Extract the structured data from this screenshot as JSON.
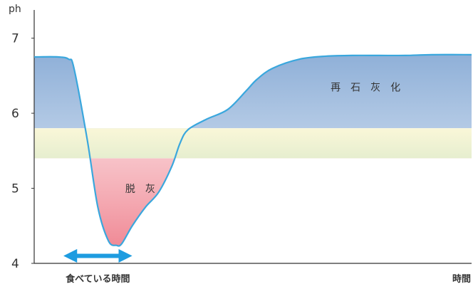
{
  "chart_data": {
    "type": "line",
    "ylabel": "ph",
    "xlabel": "時間",
    "ylim": [
      4,
      7.3
    ],
    "yticks": [
      4,
      5,
      6,
      7
    ],
    "grid": false,
    "critical_band": [
      5.4,
      5.8
    ],
    "series": [
      {
        "x": [
          0,
          0.9,
          1.3,
          1.5,
          2.0,
          2.4,
          2.8,
          3.1,
          3.3,
          3.7,
          4.2,
          4.7,
          5.2,
          5.5,
          5.8,
          6.5,
          7.3,
          8.0,
          8.4,
          9.0,
          10.0,
          11.0,
          12.0,
          13.0,
          14.0,
          15.0,
          16.5
        ],
        "y": [
          6.75,
          6.75,
          6.72,
          6.6,
          5.65,
          4.75,
          4.3,
          4.24,
          4.26,
          4.5,
          4.75,
          4.95,
          5.3,
          5.6,
          5.78,
          5.92,
          6.05,
          6.3,
          6.45,
          6.6,
          6.72,
          6.76,
          6.77,
          6.77,
          6.77,
          6.78,
          6.78
        ]
      }
    ],
    "annotations": [
      {
        "text": "脱　灰",
        "x": 4.0,
        "y": 4.95,
        "region": "demineralization"
      },
      {
        "text": "再　石　灰　化",
        "x": 12.5,
        "y": 6.3,
        "region": "remineralization"
      }
    ],
    "eating_period": {
      "label": "食べている時間",
      "x_start": 1.2,
      "x_end": 3.6,
      "y": 4.1
    },
    "x_axis_end_label": "時間",
    "colors": {
      "line": "#3aa7dd",
      "axis": "#333333",
      "arrow": "#1e9ce0",
      "band_top": "#faf7d8",
      "band_bottom": "#e6eecf",
      "demin_top": "#fbe2e4",
      "demin_bottom": "#f08a96",
      "remin_top": "#8fb0d8",
      "remin_bottom": "#eef3fa"
    }
  }
}
